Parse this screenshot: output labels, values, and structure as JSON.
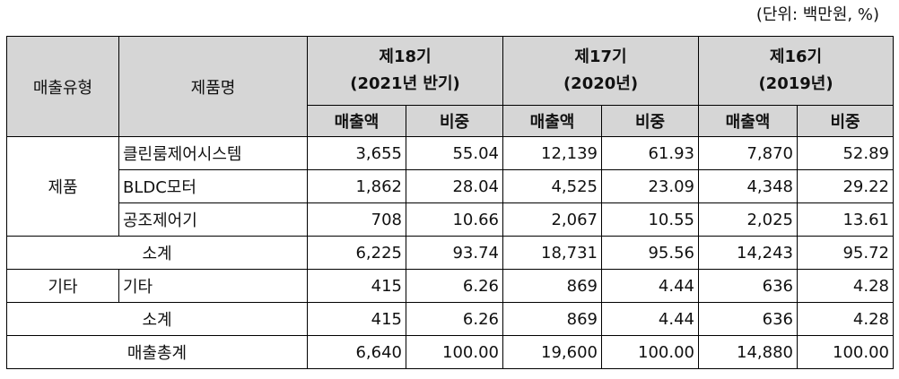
{
  "unit_note": "(단위: 백만원, %)",
  "header": {
    "col_type": "매출유형",
    "col_product": "제품명",
    "periods": [
      {
        "line1": "제18기",
        "line2": "(2021년 반기)"
      },
      {
        "line1": "제17기",
        "line2": "(2020년)"
      },
      {
        "line1": "제16기",
        "line2": "(2019년)"
      }
    ],
    "sub_sales": "매출액",
    "sub_ratio": "비중"
  },
  "rows": {
    "product_group": "제품",
    "p1": {
      "name": "클린룸제어시스템",
      "v": [
        "3,655",
        "55.04",
        "12,139",
        "61.93",
        "7,870",
        "52.89"
      ]
    },
    "p2": {
      "name": "BLDC모터",
      "v": [
        "1,862",
        "28.04",
        "4,525",
        "23.09",
        "4,348",
        "29.22"
      ]
    },
    "p3": {
      "name": "공조제어기",
      "v": [
        "708",
        "10.66",
        "2,067",
        "10.55",
        "2,025",
        "13.61"
      ]
    },
    "sub1": {
      "name": "소계",
      "v": [
        "6,225",
        "93.74",
        "18,731",
        "95.56",
        "14,243",
        "95.72"
      ]
    },
    "other_group": "기타",
    "o1": {
      "name": "기타",
      "v": [
        "415",
        "6.26",
        "869",
        "4.44",
        "636",
        "4.28"
      ]
    },
    "sub2": {
      "name": "소계",
      "v": [
        "415",
        "6.26",
        "869",
        "4.44",
        "636",
        "4.28"
      ]
    },
    "total": {
      "name": "매출총계",
      "v": [
        "6,640",
        "100.00",
        "19,600",
        "100.00",
        "14,880",
        "100.00"
      ]
    }
  }
}
